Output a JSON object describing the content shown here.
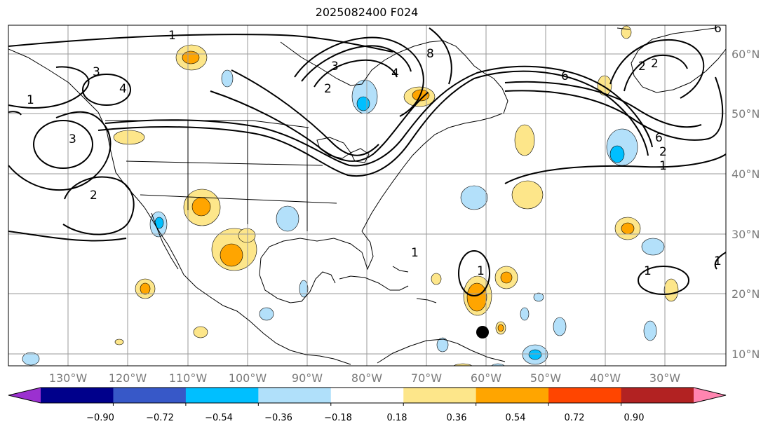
{
  "title": "2025082400 F024",
  "map": {
    "lon_labels": [
      "130°W",
      "120°W",
      "110°W",
      "100°W",
      "90°W",
      "80°W",
      "70°W",
      "60°W",
      "50°W",
      "40°W",
      "30°W"
    ],
    "lat_labels": [
      "60°N",
      "50°N",
      "40°N",
      "30°N",
      "20°N",
      "10°N"
    ],
    "contour_labels": [
      "1",
      "2",
      "3",
      "4",
      "6",
      "8",
      "1",
      "2",
      "3",
      "4",
      "6",
      "1",
      "2",
      "3",
      "2",
      "1",
      "1",
      "6",
      "2",
      "1",
      "1"
    ],
    "colors": {
      "land_outline": "#000000",
      "grid": "#9a9a9a",
      "pos_1": "#fde68a",
      "pos_2": "#ffa500",
      "neg_1": "#b3e0fa",
      "neg_2": "#00bfff"
    }
  },
  "colorbar": {
    "ticks": [
      "−0.90",
      "−0.72",
      "−0.54",
      "−0.36",
      "−0.18",
      "0.18",
      "0.36",
      "0.54",
      "0.72",
      "0.90"
    ],
    "colors": [
      "#9b30d0",
      "#00008b",
      "#3758c8",
      "#00bfff",
      "#b0e0fa",
      "#ffffff",
      "#fde68a",
      "#ffa500",
      "#ff4500",
      "#b22222",
      "#ff85b0"
    ]
  }
}
